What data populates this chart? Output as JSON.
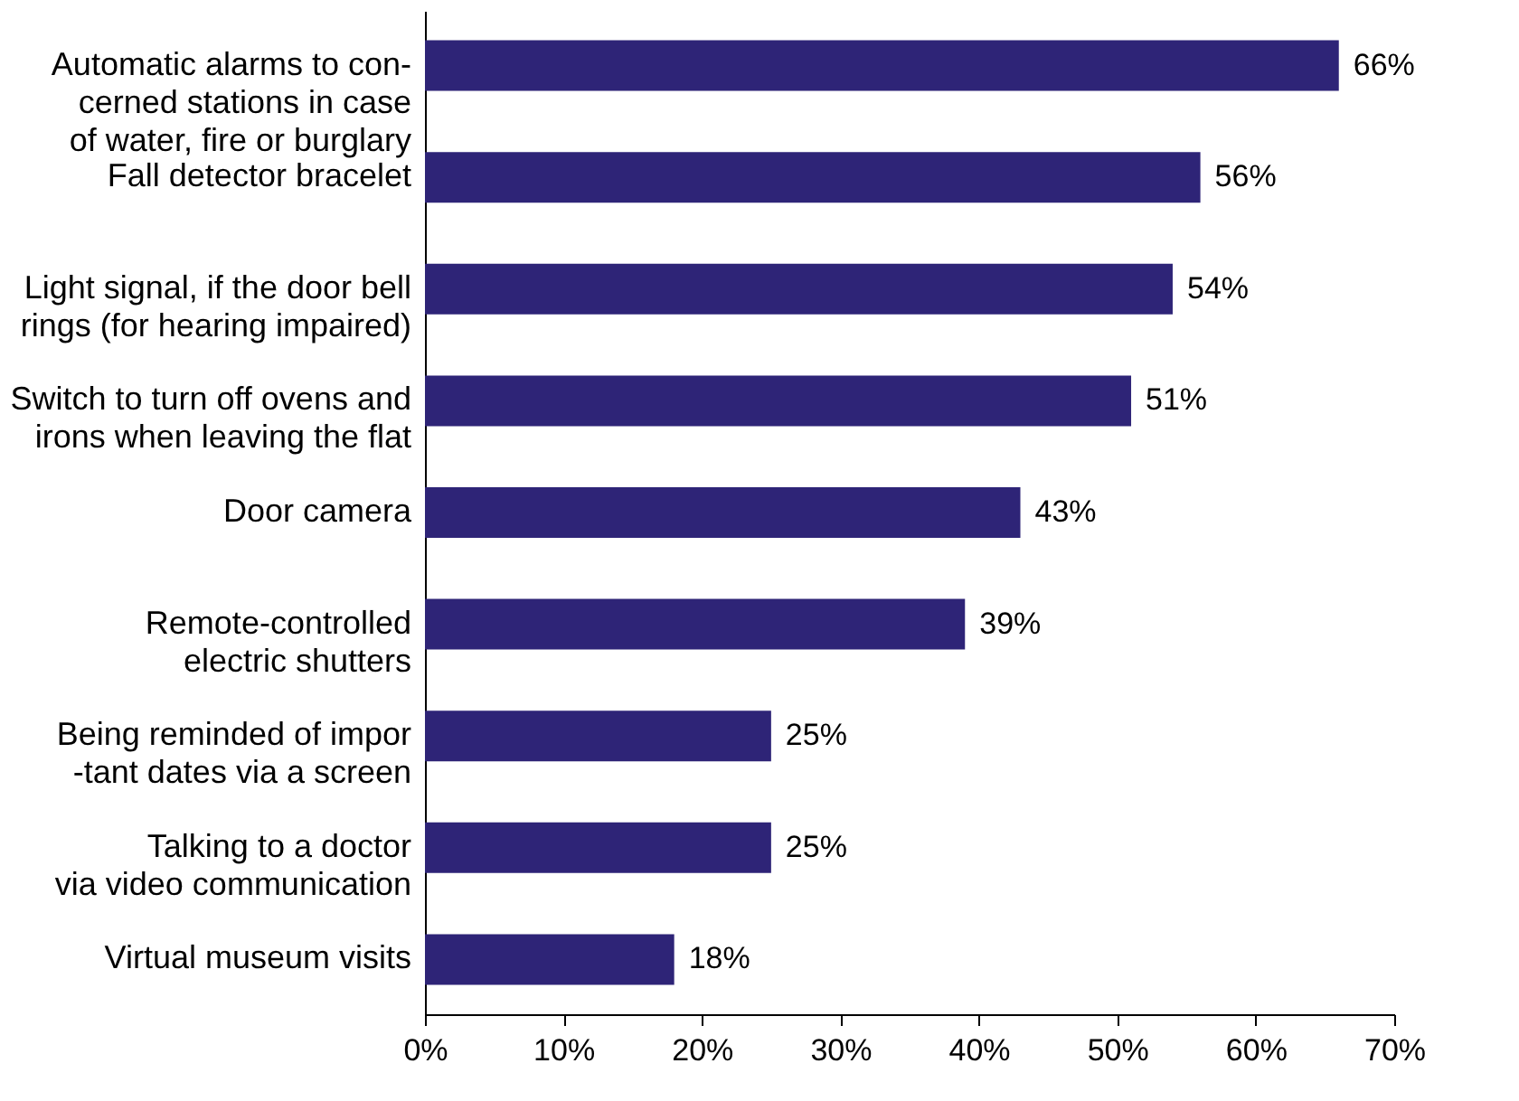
{
  "chart_data": {
    "type": "bar",
    "orientation": "horizontal",
    "categories": [
      "Automatic alarms to con-\ncerned stations in case\nof water, fire or burglary",
      "Fall detector bracelet",
      "Light signal, if the door bell\nrings (for hearing impaired)",
      "Switch to turn off ovens and\nirons when leaving the flat",
      "Door camera",
      "Remote-controlled\nelectric shutters",
      "Being reminded of impor\n-tant dates via a screen",
      "Talking to a doctor\nvia video communication",
      "Virtual museum visits"
    ],
    "values": [
      66,
      56,
      54,
      51,
      43,
      39,
      25,
      25,
      18
    ],
    "value_labels": [
      "66%",
      "56%",
      "54%",
      "51%",
      "43%",
      "39%",
      "25%",
      "25%",
      "18%"
    ],
    "color": "#2e2477",
    "xlim": [
      0,
      70
    ],
    "xticks": [
      {
        "value": 0,
        "label": "0%"
      },
      {
        "value": 10,
        "label": "10%"
      },
      {
        "value": 20,
        "label": "20%"
      },
      {
        "value": 30,
        "label": "30%"
      },
      {
        "value": 40,
        "label": "40%"
      },
      {
        "value": 50,
        "label": "50%"
      },
      {
        "value": 60,
        "label": "60%"
      },
      {
        "value": 70,
        "label": "70%"
      }
    ],
    "grid": false
  }
}
